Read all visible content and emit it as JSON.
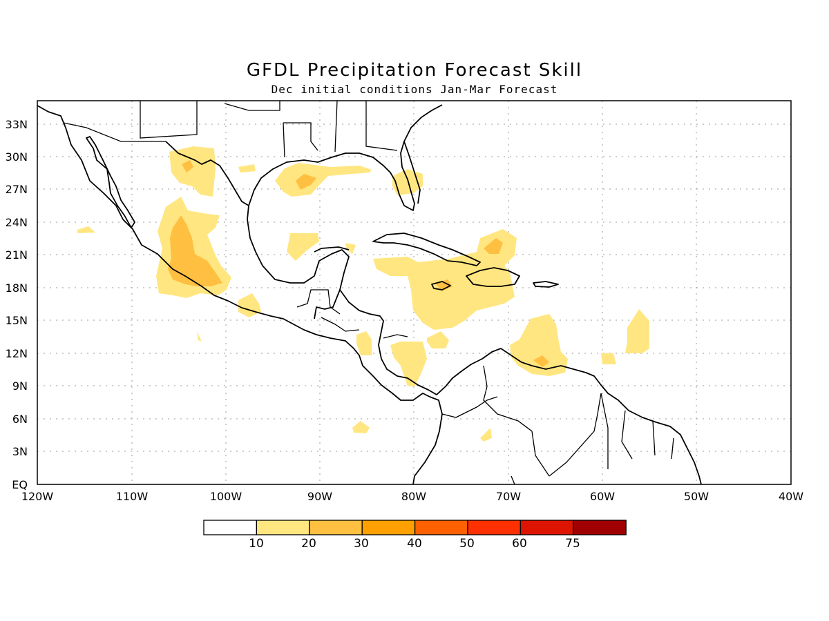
{
  "title": "GFDL Precipitation Forecast Skill",
  "subtitle": "Dec initial conditions  Jan-Mar Forecast",
  "lat_labels": [
    "33N",
    "30N",
    "27N",
    "24N",
    "21N",
    "18N",
    "15N",
    "12N",
    "9N",
    "6N",
    "3N",
    "EQ"
  ],
  "lon_labels": [
    "120W",
    "110W",
    "100W",
    "90W",
    "80W",
    "70W",
    "60W",
    "50W",
    "40W"
  ],
  "colorbar": {
    "labels": [
      "10",
      "20",
      "30",
      "40",
      "50",
      "60",
      "75"
    ],
    "colors": [
      "#ffffff",
      "#ffe680",
      "#ffbf40",
      "#ffa000",
      "#ff6000",
      "#ff3000",
      "#dc1400",
      "#a00000"
    ]
  }
}
